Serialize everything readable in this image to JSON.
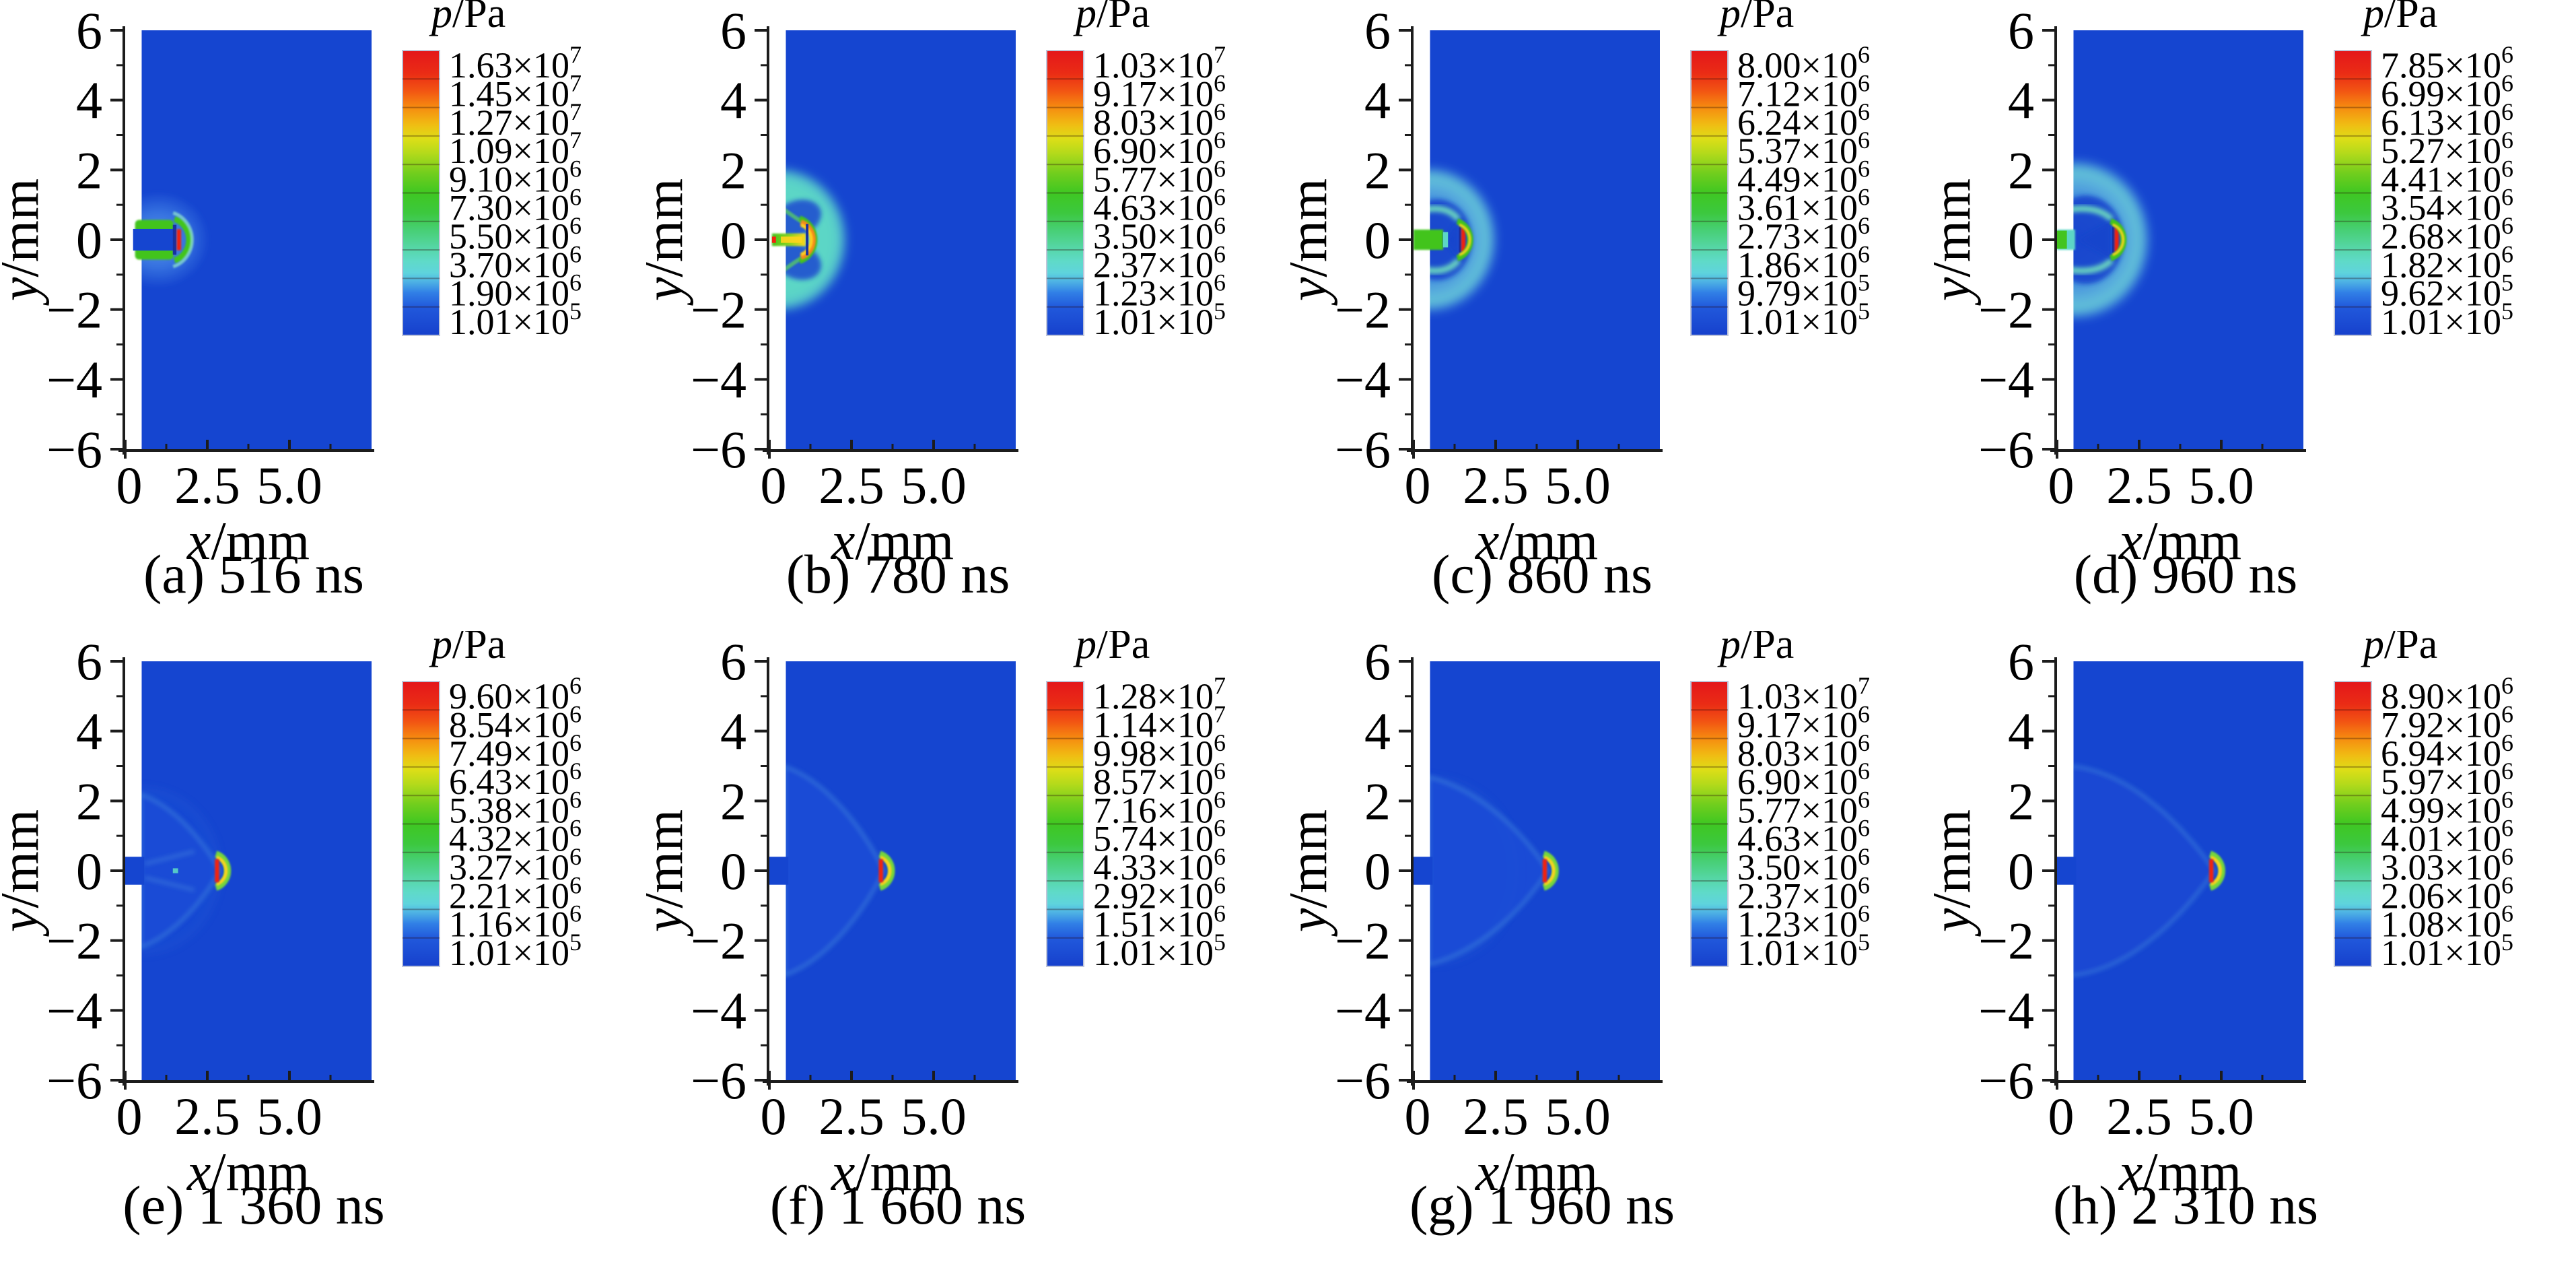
{
  "chart_data": {
    "type": "heatmap",
    "description": "Eight pressure contour snapshots of a spark-discharge jet / shock wave at successive times",
    "layout": {
      "rows": 2,
      "cols": 4,
      "legend_position": "right-of-each-panel",
      "grid": false
    },
    "axes": {
      "xlabel_var": "x",
      "xlabel_rest": "/mm",
      "ylabel_var": "y",
      "ylabel_rest": "/mm",
      "x_ticks": [
        "0",
        "2.5",
        "5.0"
      ],
      "x_tick_values_mm": [
        0,
        2.5,
        5.0
      ],
      "x_range_mm": [
        0,
        7.5
      ],
      "y_ticks": [
        "6",
        "4",
        "2",
        "0",
        "−2",
        "−4",
        "−6"
      ],
      "y_tick_values_mm": [
        6,
        4,
        2,
        0,
        -2,
        -4,
        -6
      ],
      "y_range_mm": [
        -6,
        6
      ]
    },
    "colorbar": {
      "title_var": "p",
      "title_rest": "/Pa",
      "segments": 10
    },
    "panels": [
      {
        "id": "a",
        "caption": "(a) 516 ns",
        "time_ns": 516,
        "levels_pa": [
          16300000,
          14500000,
          12700000,
          10900000,
          9100000,
          7300000,
          5500000,
          3700000,
          1900000,
          101000
        ],
        "levels_label": [
          "1.63×10",
          "1.45×10",
          "1.27×10",
          "1.09×10",
          "9.10×10",
          "7.30×10",
          "5.50×10",
          "3.70×10",
          "1.90×10",
          "1.01×10"
        ],
        "levels_exp": [
          "7",
          "7",
          "7",
          "7",
          "6",
          "6",
          "6",
          "6",
          "6",
          "5"
        ],
        "features": {
          "type": "spark",
          "front_x_mm": 1.6,
          "halo_r_mm": 1.45
        }
      },
      {
        "id": "b",
        "caption": "(b) 780 ns",
        "time_ns": 780,
        "levels_pa": [
          10300000,
          9170000,
          8030000,
          6900000,
          5770000,
          4630000,
          3500000,
          2370000,
          1230000,
          101000
        ],
        "levels_label": [
          "1.03×10",
          "9.17×10",
          "8.03×10",
          "6.90×10",
          "5.77×10",
          "4.63×10",
          "3.50×10",
          "2.37×10",
          "1.23×10",
          "1.01×10"
        ],
        "levels_exp": [
          "7",
          "6",
          "6",
          "6",
          "6",
          "6",
          "6",
          "6",
          "6",
          "5"
        ],
        "features": {
          "type": "jet-blast",
          "blast_r_mm": 2.07,
          "jet_len_mm": 1.1,
          "front_x_mm": 1.15
        }
      },
      {
        "id": "c",
        "caption": "(c) 860 ns",
        "time_ns": 860,
        "levels_pa": [
          8000000,
          7120000,
          6240000,
          5370000,
          4490000,
          3610000,
          2730000,
          1860000,
          979000,
          101000
        ],
        "levels_label": [
          "8.00×10",
          "7.12×10",
          "6.24×10",
          "5.37×10",
          "4.49×10",
          "3.61×10",
          "2.73×10",
          "1.86×10",
          "9.79×10",
          "1.01×10"
        ],
        "levels_exp": [
          "6",
          "6",
          "6",
          "6",
          "6",
          "6",
          "6",
          "6",
          "5",
          "5"
        ],
        "features": {
          "type": "blast",
          "blast_r_mm": 2.1,
          "blast_cx_mm": 0.45,
          "front_x_mm": 1.45,
          "jet_len_mm": 0.9
        }
      },
      {
        "id": "d",
        "caption": "(d) 960 ns",
        "time_ns": 960,
        "levels_pa": [
          7850000,
          6990000,
          6130000,
          5270000,
          4410000,
          3540000,
          2680000,
          1820000,
          962000,
          101000
        ],
        "levels_label": [
          "7.85×10",
          "6.99×10",
          "6.13×10",
          "5.27×10",
          "4.41×10",
          "3.54×10",
          "2.68×10",
          "1.82×10",
          "9.62×10",
          "1.01×10"
        ],
        "levels_exp": [
          "6",
          "6",
          "6",
          "6",
          "6",
          "6",
          "6",
          "6",
          "5",
          "5"
        ],
        "features": {
          "type": "blast",
          "blast_r_mm": 2.3,
          "blast_cx_mm": 0.55,
          "front_x_mm": 1.75,
          "jet_len_mm": 0.55
        }
      },
      {
        "id": "e",
        "caption": "(e) 1 360 ns",
        "time_ns": 1360,
        "levels_pa": [
          9600000,
          8540000,
          7490000,
          6430000,
          5380000,
          4320000,
          3270000,
          2210000,
          1160000,
          101000
        ],
        "levels_label": [
          "9.60×10",
          "8.54×10",
          "7.49×10",
          "6.43×10",
          "5.38×10",
          "4.32×10",
          "3.27×10",
          "2.21×10",
          "1.16×10",
          "1.01×10"
        ],
        "levels_exp": [
          "6",
          "6",
          "6",
          "6",
          "6",
          "6",
          "6",
          "6",
          "6",
          "5"
        ],
        "features": {
          "type": "bow",
          "apex_x_mm": 2.9,
          "base_half_mm": 2.2,
          "halo_r_mm": 2.3
        }
      },
      {
        "id": "f",
        "caption": "(f) 1 660 ns",
        "time_ns": 1660,
        "levels_pa": [
          12800000,
          11400000,
          9980000,
          8570000,
          7160000,
          5740000,
          4330000,
          2920000,
          1510000,
          101000
        ],
        "levels_label": [
          "1.28×10",
          "1.14×10",
          "9.98×10",
          "8.57×10",
          "7.16×10",
          "5.74×10",
          "4.33×10",
          "2.92×10",
          "1.51×10",
          "1.01×10"
        ],
        "levels_exp": [
          "7",
          "7",
          "6",
          "6",
          "6",
          "6",
          "6",
          "6",
          "6",
          "5"
        ],
        "features": {
          "type": "bow",
          "apex_x_mm": 3.5,
          "base_half_mm": 3.0
        }
      },
      {
        "id": "g",
        "caption": "(g) 1 960 ns",
        "time_ns": 1960,
        "levels_pa": [
          10300000,
          9170000,
          8030000,
          6900000,
          5770000,
          4630000,
          3500000,
          2370000,
          1230000,
          101000
        ],
        "levels_label": [
          "1.03×10",
          "9.17×10",
          "8.03×10",
          "6.90×10",
          "5.77×10",
          "4.63×10",
          "3.50×10",
          "2.37×10",
          "1.23×10",
          "1.01×10"
        ],
        "levels_exp": [
          "7",
          "6",
          "6",
          "6",
          "6",
          "6",
          "6",
          "6",
          "6",
          "5"
        ],
        "features": {
          "type": "bow",
          "apex_x_mm": 4.1,
          "base_half_mm": 2.7,
          "halo_r_mm": 2.6
        }
      },
      {
        "id": "h",
        "caption": "(h) 2 310 ns",
        "time_ns": 2310,
        "levels_pa": [
          8900000,
          7920000,
          6940000,
          5970000,
          4990000,
          4010000,
          3030000,
          2060000,
          1080000,
          101000
        ],
        "levels_label": [
          "8.90×10",
          "7.92×10",
          "6.94×10",
          "5.97×10",
          "4.99×10",
          "4.01×10",
          "3.03×10",
          "2.06×10",
          "1.08×10",
          "1.01×10"
        ],
        "levels_exp": [
          "6",
          "6",
          "6",
          "6",
          "6",
          "6",
          "6",
          "6",
          "6",
          "5"
        ],
        "features": {
          "type": "leaf",
          "apex_x_mm": 4.8,
          "base_half_mm": 3.1
        }
      }
    ]
  },
  "style": {
    "background": "#ffffff",
    "domain_blue": "#1545d0",
    "teal": "#5cd6c6",
    "green": "#43c41e",
    "yellow": "#ffd41c",
    "orange": "#f5871c",
    "red": "#f2230e",
    "navy": "#18309e",
    "light_blue": "#4f9ae6",
    "axis": "#1c1c1c",
    "text": "#000000",
    "colorbar_border": "#c0c6da",
    "colorbar_stops": [
      [
        0.0,
        "#e4161b"
      ],
      [
        0.08,
        "#ea2c15"
      ],
      [
        0.14,
        "#f25313"
      ],
      [
        0.2,
        "#f68c10"
      ],
      [
        0.26,
        "#f0bc13"
      ],
      [
        0.31,
        "#ddde17"
      ],
      [
        0.36,
        "#b4da1b"
      ],
      [
        0.43,
        "#72ce1d"
      ],
      [
        0.5,
        "#3fc722"
      ],
      [
        0.57,
        "#3cc83e"
      ],
      [
        0.63,
        "#47cf74"
      ],
      [
        0.69,
        "#55d6a4"
      ],
      [
        0.74,
        "#5fdac8"
      ],
      [
        0.78,
        "#5fd4dc"
      ],
      [
        0.81,
        "#4fb4e4"
      ],
      [
        0.85,
        "#3180e6"
      ],
      [
        0.9,
        "#2159dc"
      ],
      [
        1.0,
        "#1640cc"
      ]
    ]
  }
}
